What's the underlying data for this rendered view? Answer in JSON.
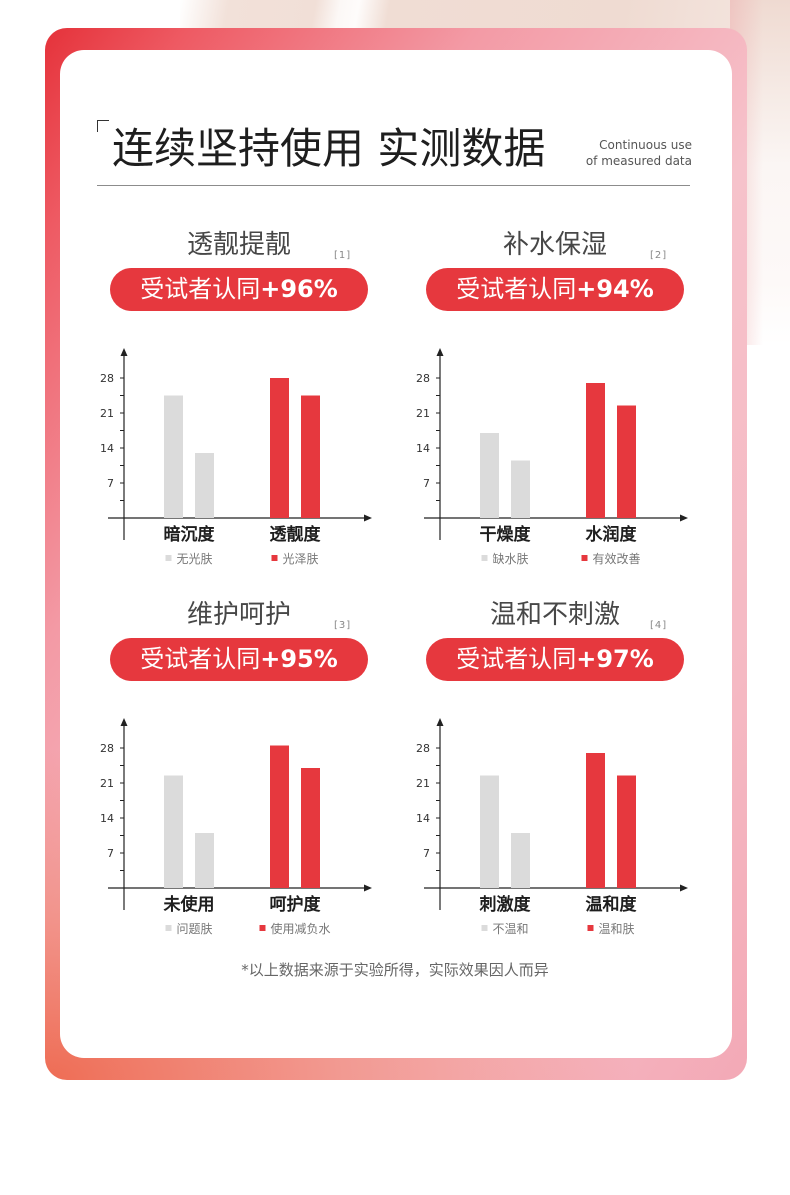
{
  "header": {
    "title": "连续坚持使用 实测数据",
    "subtitle_line1": "Continuous use",
    "subtitle_line2": "of measured data"
  },
  "colors": {
    "accent": "#e6383e",
    "bar_gray": "#dbdbdb"
  },
  "chart_data": [
    {
      "type": "bar",
      "title": "透靓提靓",
      "ref": "[1]",
      "badge_text": "受试者认同",
      "badge_value": "+96%",
      "yticks": [
        7,
        14,
        21,
        28
      ],
      "ylim": [
        0,
        34
      ],
      "categories": [
        "暗沉度",
        "透靓度"
      ],
      "series": [
        {
          "name": "无光肤",
          "category": "暗沉度",
          "color": "#dbdbdb",
          "values": [
            24.5,
            13
          ]
        },
        {
          "name": "光泽肤",
          "category": "透靓度",
          "color": "#e6383e",
          "values": [
            28,
            24.5
          ]
        }
      ]
    },
    {
      "type": "bar",
      "title": "补水保湿",
      "ref": "[2]",
      "badge_text": "受试者认同",
      "badge_value": "+94%",
      "yticks": [
        7,
        14,
        21,
        28
      ],
      "ylim": [
        0,
        34
      ],
      "categories": [
        "干燥度",
        "水润度"
      ],
      "series": [
        {
          "name": "缺水肤",
          "category": "干燥度",
          "color": "#dbdbdb",
          "values": [
            17,
            11.5
          ]
        },
        {
          "name": "有效改善",
          "category": "水润度",
          "color": "#e6383e",
          "values": [
            27,
            22.5
          ]
        }
      ]
    },
    {
      "type": "bar",
      "title": "维护呵护",
      "ref": "[3]",
      "badge_text": "受试者认同",
      "badge_value": "+95%",
      "yticks": [
        7,
        14,
        21,
        28
      ],
      "ylim": [
        0,
        34
      ],
      "categories": [
        "未使用",
        "呵护度"
      ],
      "series": [
        {
          "name": "问题肤",
          "category": "未使用",
          "color": "#dbdbdb",
          "values": [
            22.5,
            11
          ]
        },
        {
          "name": "使用减负水",
          "category": "呵护度",
          "color": "#e6383e",
          "values": [
            28.5,
            24
          ]
        }
      ]
    },
    {
      "type": "bar",
      "title": "温和不刺激",
      "ref": "[4]",
      "badge_text": "受试者认同",
      "badge_value": "+97%",
      "yticks": [
        7,
        14,
        21,
        28
      ],
      "ylim": [
        0,
        34
      ],
      "categories": [
        "刺激度",
        "温和度"
      ],
      "series": [
        {
          "name": "不温和",
          "category": "刺激度",
          "color": "#dbdbdb",
          "values": [
            22.5,
            11
          ]
        },
        {
          "name": "温和肤",
          "category": "温和度",
          "color": "#e6383e",
          "values": [
            27,
            22.5
          ]
        }
      ]
    }
  ],
  "footnote": "*以上数据来源于实验所得，实际效果因人而异"
}
